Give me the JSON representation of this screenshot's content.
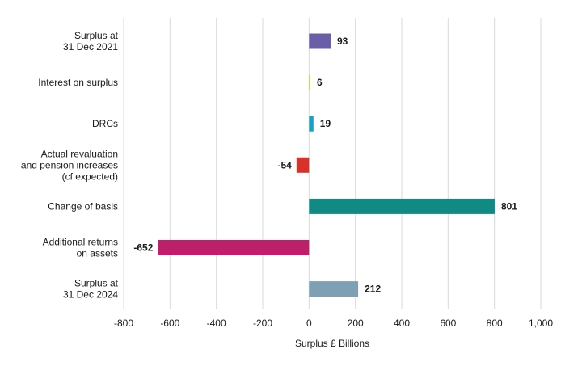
{
  "chart_data": {
    "type": "bar",
    "orientation": "horizontal",
    "title": "",
    "xlabel": "Surplus £ Billions",
    "ylabel": "",
    "xlim": [
      -800,
      1000
    ],
    "xticks": [
      -800,
      -600,
      -400,
      -200,
      0,
      200,
      400,
      600,
      800,
      1000
    ],
    "xtick_labels": [
      "-800",
      "-600",
      "-400",
      "-200",
      "0",
      "200",
      "400",
      "600",
      "800",
      "1,000"
    ],
    "grid": "vertical",
    "legend": "none",
    "categories": [
      [
        "Surplus at",
        "31 Dec 2021"
      ],
      [
        "Interest on surplus"
      ],
      [
        "DRCs"
      ],
      [
        "Actual revaluation",
        "and pension increases",
        "(cf expected)"
      ],
      [
        "Change of basis"
      ],
      [
        "Additional returns",
        "on assets"
      ],
      [
        "Surplus at",
        "31 Dec 2024"
      ]
    ],
    "values": [
      93,
      6,
      19,
      -54,
      801,
      -652,
      212
    ],
    "value_labels": [
      "93",
      "6",
      "19",
      "-54",
      "801",
      "-652",
      "212"
    ],
    "colors": [
      "#6b5ea8",
      "#c3d530",
      "#1aa0c0",
      "#d6322a",
      "#108a82",
      "#bd1f6b",
      "#7f9fb5"
    ]
  }
}
